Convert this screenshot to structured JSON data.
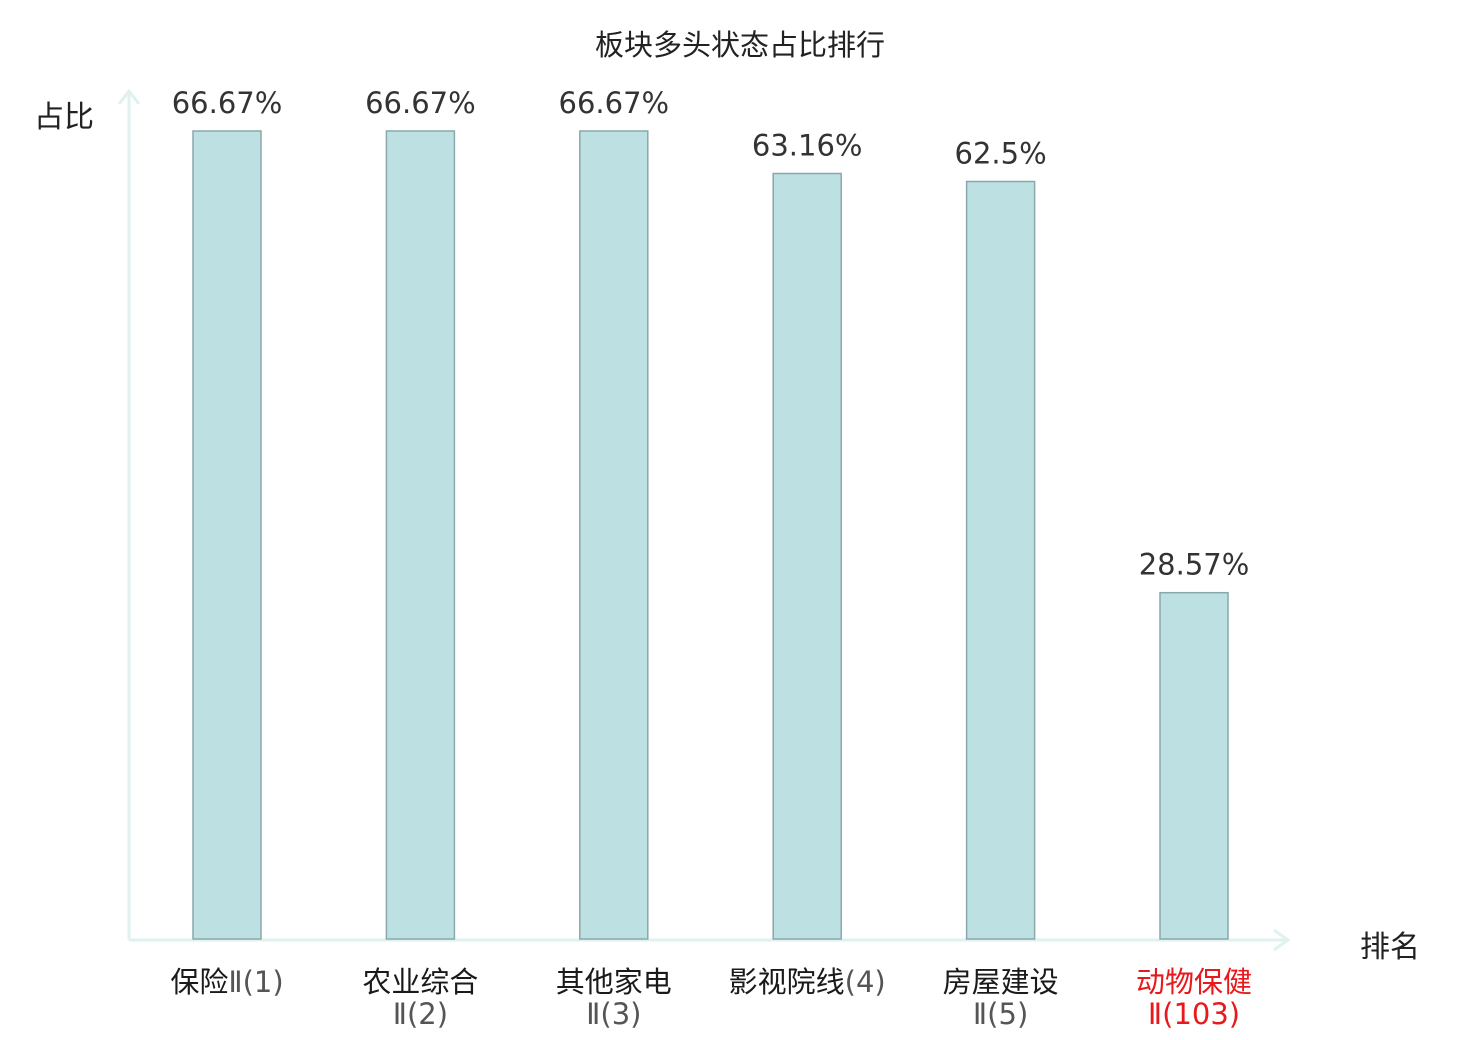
{
  "chart_data": {
    "type": "bar",
    "title": "板块多头状态占比排行",
    "xlabel": "排名",
    "ylabel": "占比",
    "ylim": [
      0,
      70
    ],
    "grid": false,
    "legend": "none",
    "categories": [
      {
        "name": "保险",
        "suffix": "Ⅱ(1)",
        "highlight": false
      },
      {
        "name": "农业综合",
        "suffix": "Ⅱ(2)",
        "highlight": false
      },
      {
        "name": "其他家电",
        "suffix": "Ⅱ(3)",
        "highlight": false
      },
      {
        "name": "影视院线",
        "suffix": "(4)",
        "highlight": false
      },
      {
        "name": "房屋建设",
        "suffix": "Ⅱ(5)",
        "highlight": false
      },
      {
        "name": "动物保健",
        "suffix": "Ⅱ(103)",
        "highlight": true
      }
    ],
    "values": [
      66.67,
      66.67,
      66.67,
      63.16,
      62.5,
      28.57
    ],
    "value_labels": [
      "66.67%",
      "66.67%",
      "66.67%",
      "63.16%",
      "62.5%",
      "28.57%"
    ],
    "colors": {
      "bar_fill": "#bde1e3",
      "bar_stroke": "#8aa8ab",
      "axis": "#dff2ef",
      "highlight_text": "#e8191c"
    }
  }
}
